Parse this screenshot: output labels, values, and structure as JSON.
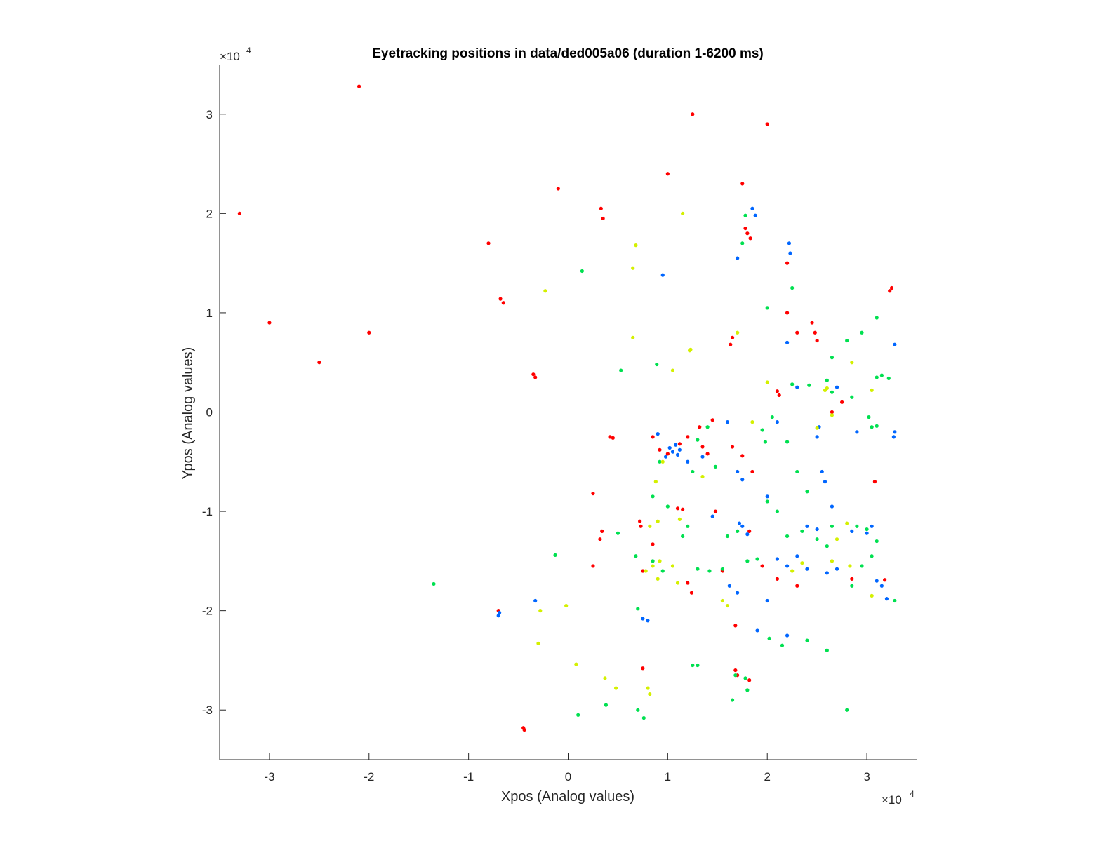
{
  "chart_data": {
    "type": "scatter",
    "title": "Eyetracking positions in data/ded005a06 (duration 1-6200 ms)",
    "xlabel": "Xpos (Analog values)",
    "ylabel": "Ypos (Analog values)",
    "x_exponent_base": "×10",
    "x_exponent_power": "4",
    "y_exponent_base": "×10",
    "y_exponent_power": "4",
    "xlim": [
      -35000,
      35000
    ],
    "ylim": [
      -35000,
      35000
    ],
    "grid": false,
    "legend": "none",
    "x_ticks": [
      {
        "value": -30000,
        "label": "-3"
      },
      {
        "value": -20000,
        "label": "-2"
      },
      {
        "value": -10000,
        "label": "-1"
      },
      {
        "value": 0,
        "label": "0"
      },
      {
        "value": 10000,
        "label": "1"
      },
      {
        "value": 20000,
        "label": "2"
      },
      {
        "value": 30000,
        "label": "3"
      }
    ],
    "y_ticks": [
      {
        "value": -30000,
        "label": "-3"
      },
      {
        "value": -20000,
        "label": "-2"
      },
      {
        "value": -10000,
        "label": "-1"
      },
      {
        "value": 0,
        "label": "0"
      },
      {
        "value": 10000,
        "label": "1"
      },
      {
        "value": 20000,
        "label": "2"
      },
      {
        "value": 30000,
        "label": "3"
      }
    ],
    "series": [
      {
        "color": "#ff0000",
        "points": [
          [
            3500,
            19500
          ],
          [
            3300,
            20500
          ],
          [
            -6500,
            11000
          ],
          [
            -6800,
            11400
          ],
          [
            -3300,
            3500
          ],
          [
            -3500,
            3800
          ],
          [
            18000,
            18000
          ],
          [
            18300,
            17500
          ],
          [
            17800,
            18500
          ],
          [
            24500,
            9000
          ],
          [
            24800,
            8000
          ],
          [
            25000,
            7200
          ],
          [
            21200,
            1700
          ],
          [
            21000,
            2100
          ],
          [
            8500,
            -2500
          ],
          [
            9200,
            -3800
          ],
          [
            10000,
            -4200
          ],
          [
            11200,
            -3200
          ],
          [
            12000,
            -2500
          ],
          [
            13200,
            -1500
          ],
          [
            13500,
            -3500
          ],
          [
            14000,
            -4200
          ],
          [
            16500,
            -3500
          ],
          [
            17500,
            -4400
          ],
          [
            14500,
            -800
          ],
          [
            4200,
            -2500
          ],
          [
            4500,
            -2600
          ],
          [
            2500,
            -8200
          ],
          [
            11500,
            -9800
          ],
          [
            11000,
            -9700
          ],
          [
            3400,
            -12000
          ],
          [
            3200,
            -12800
          ],
          [
            7200,
            -11000
          ],
          [
            7300,
            -11500
          ],
          [
            8500,
            -13300
          ],
          [
            2500,
            -15500
          ],
          [
            12400,
            -18200
          ],
          [
            12000,
            -17200
          ],
          [
            7500,
            -16000
          ],
          [
            16800,
            -21500
          ],
          [
            16800,
            -26000
          ],
          [
            17000,
            -26500
          ],
          [
            18200,
            -27000
          ],
          [
            7500,
            -25800
          ],
          [
            -4500,
            -31800
          ],
          [
            -4400,
            -32000
          ],
          [
            -7000,
            -20000
          ],
          [
            31800,
            -16900
          ],
          [
            28500,
            -16800
          ],
          [
            30800,
            -7000
          ],
          [
            32300,
            12200
          ],
          [
            32500,
            12500
          ],
          [
            22000,
            10000
          ],
          [
            23000,
            8000
          ],
          [
            26500,
            0
          ],
          [
            27500,
            1000
          ],
          [
            18200,
            -12000
          ],
          [
            19500,
            -15500
          ],
          [
            21000,
            -16800
          ],
          [
            23000,
            -17500
          ],
          [
            17500,
            23000
          ],
          [
            10000,
            24000
          ],
          [
            -1000,
            22500
          ],
          [
            -8000,
            17000
          ],
          [
            -20000,
            8000
          ],
          [
            -25000,
            5000
          ],
          [
            -30000,
            9000
          ],
          [
            -33000,
            20000
          ],
          [
            -21000,
            32800
          ],
          [
            12500,
            30000
          ],
          [
            20000,
            29000
          ],
          [
            22000,
            15000
          ],
          [
            16500,
            7500
          ],
          [
            16300,
            6800
          ],
          [
            18500,
            -6000
          ],
          [
            14800,
            -10000
          ],
          [
            15500,
            -16000
          ]
        ]
      },
      {
        "color": "#0066ff",
        "points": [
          [
            10500,
            -4000
          ],
          [
            10200,
            -3600
          ],
          [
            11000,
            -4300
          ],
          [
            10800,
            -3300
          ],
          [
            9800,
            -4500
          ],
          [
            11200,
            -3800
          ],
          [
            17000,
            15500
          ],
          [
            18500,
            20500
          ],
          [
            18800,
            19800
          ],
          [
            9500,
            13800
          ],
          [
            22200,
            17000
          ],
          [
            22300,
            16000
          ],
          [
            32800,
            6800
          ],
          [
            32800,
            -2000
          ],
          [
            32700,
            -2500
          ],
          [
            22000,
            7000
          ],
          [
            25200,
            -1500
          ],
          [
            25000,
            -2500
          ],
          [
            17000,
            -6000
          ],
          [
            17500,
            -6800
          ],
          [
            17500,
            -11500
          ],
          [
            17200,
            -11200
          ],
          [
            18000,
            -12300
          ],
          [
            23000,
            -14500
          ],
          [
            24000,
            -15800
          ],
          [
            26000,
            -16200
          ],
          [
            27000,
            -15800
          ],
          [
            28500,
            -12000
          ],
          [
            30000,
            -12200
          ],
          [
            31000,
            -17000
          ],
          [
            31500,
            -17500
          ],
          [
            32000,
            -18800
          ],
          [
            24000,
            -11500
          ],
          [
            25000,
            -11800
          ],
          [
            22000,
            -15500
          ],
          [
            16200,
            -17500
          ],
          [
            17000,
            -18200
          ],
          [
            20000,
            -19000
          ],
          [
            21000,
            -14800
          ],
          [
            -7000,
            -20500
          ],
          [
            -6900,
            -20200
          ],
          [
            -3300,
            -19000
          ],
          [
            7500,
            -20800
          ],
          [
            8000,
            -21000
          ],
          [
            19000,
            -22000
          ],
          [
            22000,
            -22500
          ],
          [
            14500,
            -10500
          ],
          [
            20000,
            -8500
          ],
          [
            16000,
            -1000
          ],
          [
            12000,
            -5000
          ],
          [
            25500,
            -6000
          ],
          [
            25800,
            -7000
          ],
          [
            26500,
            -9500
          ],
          [
            21000,
            -1000
          ],
          [
            13500,
            -4500
          ],
          [
            9000,
            -2200
          ],
          [
            29000,
            -2000
          ],
          [
            30500,
            -11500
          ],
          [
            23000,
            2500
          ],
          [
            27000,
            2500
          ]
        ]
      },
      {
        "color": "#00e050",
        "points": [
          [
            1400,
            14200
          ],
          [
            -1300,
            -14400
          ],
          [
            -13500,
            -17300
          ],
          [
            17500,
            17000
          ],
          [
            17800,
            19800
          ],
          [
            5300,
            4200
          ],
          [
            8900,
            4800
          ],
          [
            22500,
            2800
          ],
          [
            24200,
            2700
          ],
          [
            26000,
            3200
          ],
          [
            28000,
            7200
          ],
          [
            31500,
            3700
          ],
          [
            32200,
            3400
          ],
          [
            31000,
            3500
          ],
          [
            31000,
            9500
          ],
          [
            29500,
            8000
          ],
          [
            26500,
            5500
          ],
          [
            30500,
            -1500
          ],
          [
            31000,
            -1400
          ],
          [
            30200,
            -500
          ],
          [
            13000,
            -2800
          ],
          [
            14000,
            -1500
          ],
          [
            19500,
            -1800
          ],
          [
            19800,
            -3000
          ],
          [
            20500,
            -500
          ],
          [
            22000,
            -3000
          ],
          [
            12500,
            -6000
          ],
          [
            14800,
            -5500
          ],
          [
            8500,
            -8500
          ],
          [
            9200,
            -5000
          ],
          [
            11500,
            -12500
          ],
          [
            16000,
            -12500
          ],
          [
            17000,
            -12000
          ],
          [
            20000,
            -9000
          ],
          [
            21000,
            -10000
          ],
          [
            23000,
            -6000
          ],
          [
            24000,
            -8000
          ],
          [
            29000,
            -11500
          ],
          [
            30000,
            -11800
          ],
          [
            31000,
            -13000
          ],
          [
            30500,
            -14500
          ],
          [
            29500,
            -15500
          ],
          [
            28500,
            -17500
          ],
          [
            26000,
            -13500
          ],
          [
            25000,
            -12800
          ],
          [
            18000,
            -15000
          ],
          [
            19000,
            -14800
          ],
          [
            13000,
            -15800
          ],
          [
            14200,
            -16000
          ],
          [
            9500,
            -16000
          ],
          [
            6800,
            -14500
          ],
          [
            8500,
            -15000
          ],
          [
            5000,
            -12200
          ],
          [
            7000,
            -19800
          ],
          [
            12500,
            -25500
          ],
          [
            13000,
            -25500
          ],
          [
            16800,
            -26500
          ],
          [
            17800,
            -26800
          ],
          [
            16500,
            -29000
          ],
          [
            18000,
            -28000
          ],
          [
            3800,
            -29500
          ],
          [
            1000,
            -30500
          ],
          [
            7000,
            -30000
          ],
          [
            7600,
            -30800
          ],
          [
            21500,
            -23500
          ],
          [
            20200,
            -22800
          ],
          [
            28000,
            -30000
          ],
          [
            26000,
            -24000
          ],
          [
            24000,
            -23000
          ],
          [
            22000,
            -12500
          ],
          [
            23500,
            -12000
          ],
          [
            26500,
            -11500
          ],
          [
            15500,
            -15800
          ],
          [
            12000,
            -11500
          ],
          [
            10000,
            -9500
          ],
          [
            20000,
            10500
          ],
          [
            22500,
            12500
          ],
          [
            32800,
            -19000
          ],
          [
            26500,
            2000
          ],
          [
            28500,
            1500
          ]
        ]
      },
      {
        "color": "#d4f000",
        "points": [
          [
            6500,
            14500
          ],
          [
            6800,
            16800
          ],
          [
            -2300,
            12200
          ],
          [
            12200,
            6200
          ],
          [
            12300,
            6300
          ],
          [
            10500,
            4200
          ],
          [
            25800,
            2200
          ],
          [
            26000,
            2400
          ],
          [
            28500,
            5000
          ],
          [
            30500,
            2200
          ],
          [
            25000,
            -1600
          ],
          [
            26500,
            -300
          ],
          [
            17000,
            8000
          ],
          [
            8800,
            -7000
          ],
          [
            9500,
            -5000
          ],
          [
            18500,
            -1000
          ],
          [
            13500,
            -6500
          ],
          [
            11200,
            -10800
          ],
          [
            8200,
            -11500
          ],
          [
            9000,
            -11000
          ],
          [
            8500,
            -15500
          ],
          [
            9200,
            -15000
          ],
          [
            10500,
            -15500
          ],
          [
            11000,
            -17200
          ],
          [
            7800,
            -16000
          ],
          [
            9000,
            -16800
          ],
          [
            23500,
            -15200
          ],
          [
            22500,
            -16000
          ],
          [
            28000,
            -11200
          ],
          [
            28300,
            -15500
          ],
          [
            30500,
            -18500
          ],
          [
            27000,
            -12800
          ],
          [
            26500,
            -15000
          ],
          [
            -200,
            -19500
          ],
          [
            800,
            -25400
          ],
          [
            3700,
            -26800
          ],
          [
            4800,
            -27800
          ],
          [
            8000,
            -27800
          ],
          [
            8200,
            -28400
          ],
          [
            -3000,
            -23300
          ],
          [
            -2800,
            -20000
          ],
          [
            15500,
            -19000
          ],
          [
            16000,
            -19500
          ],
          [
            6500,
            7500
          ],
          [
            11500,
            20000
          ],
          [
            20000,
            3000
          ]
        ]
      }
    ]
  }
}
